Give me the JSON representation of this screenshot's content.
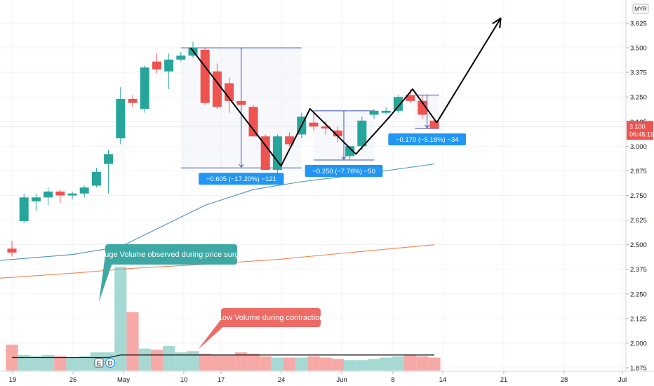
{
  "chart_data": {
    "type": "candlestick",
    "currency": "MYR",
    "price_axis": {
      "min": 1.875,
      "max": 3.625,
      "ticks": [
        "3.625",
        "3.500",
        "3.375",
        "3.250",
        "3.125",
        "3.000",
        "2.875",
        "2.750",
        "2.625",
        "2.500",
        "2.375",
        "2.250",
        "2.125",
        "2.000",
        "1.875"
      ]
    },
    "time_axis": {
      "labels": [
        "19",
        "26",
        "May",
        "10",
        "17",
        "24",
        "Jun",
        "8",
        "14",
        "21",
        "28",
        "Jul"
      ]
    },
    "candles": [
      {
        "o": 2.48,
        "h": 2.52,
        "l": 2.44,
        "c": 2.46
      },
      {
        "o": 2.62,
        "h": 2.76,
        "l": 2.61,
        "c": 2.74
      },
      {
        "o": 2.72,
        "h": 2.76,
        "l": 2.67,
        "c": 2.74
      },
      {
        "o": 2.74,
        "h": 2.79,
        "l": 2.7,
        "c": 2.77
      },
      {
        "o": 2.77,
        "h": 2.78,
        "l": 2.71,
        "c": 2.75
      },
      {
        "o": 2.75,
        "h": 2.77,
        "l": 2.73,
        "c": 2.76
      },
      {
        "o": 2.76,
        "h": 2.8,
        "l": 2.74,
        "c": 2.79
      },
      {
        "o": 2.8,
        "h": 2.89,
        "l": 2.79,
        "c": 2.87
      },
      {
        "o": 2.91,
        "h": 2.98,
        "l": 2.76,
        "c": 2.96
      },
      {
        "o": 3.04,
        "h": 3.3,
        "l": 3.01,
        "c": 3.24
      },
      {
        "o": 3.24,
        "h": 3.26,
        "l": 3.2,
        "c": 3.22
      },
      {
        "o": 3.19,
        "h": 3.41,
        "l": 3.17,
        "c": 3.4
      },
      {
        "o": 3.43,
        "h": 3.47,
        "l": 3.37,
        "c": 3.39
      },
      {
        "o": 3.38,
        "h": 3.47,
        "l": 3.29,
        "c": 3.44
      },
      {
        "o": 3.44,
        "h": 3.48,
        "l": 3.43,
        "c": 3.46
      },
      {
        "o": 3.46,
        "h": 3.53,
        "l": 3.45,
        "c": 3.5
      },
      {
        "o": 3.49,
        "h": 3.5,
        "l": 3.21,
        "c": 3.22
      },
      {
        "o": 3.38,
        "h": 3.42,
        "l": 3.19,
        "c": 3.2
      },
      {
        "o": 3.32,
        "h": 3.35,
        "l": 3.17,
        "c": 3.23
      },
      {
        "o": 3.23,
        "h": 3.26,
        "l": 3.2,
        "c": 3.21
      },
      {
        "o": 3.2,
        "h": 3.21,
        "l": 3.05,
        "c": 3.05
      },
      {
        "o": 3.05,
        "h": 3.06,
        "l": 2.88,
        "c": 2.88
      },
      {
        "o": 2.88,
        "h": 3.06,
        "l": 2.85,
        "c": 3.05
      },
      {
        "o": 3.05,
        "h": 3.07,
        "l": 3.0,
        "c": 3.01
      },
      {
        "o": 3.06,
        "h": 3.17,
        "l": 3.04,
        "c": 3.15
      },
      {
        "o": 3.12,
        "h": 3.18,
        "l": 3.08,
        "c": 3.1
      },
      {
        "o": 3.1,
        "h": 3.13,
        "l": 3.06,
        "c": 3.09
      },
      {
        "o": 3.08,
        "h": 3.1,
        "l": 3.02,
        "c": 3.05
      },
      {
        "o": 2.95,
        "h": 3.0,
        "l": 2.93,
        "c": 3.0
      },
      {
        "o": 3.0,
        "h": 3.15,
        "l": 2.98,
        "c": 3.13
      },
      {
        "o": 3.16,
        "h": 3.19,
        "l": 3.14,
        "c": 3.18
      },
      {
        "o": 3.17,
        "h": 3.2,
        "l": 3.16,
        "c": 3.18
      },
      {
        "o": 3.18,
        "h": 3.26,
        "l": 3.17,
        "c": 3.25
      },
      {
        "o": 3.26,
        "h": 3.29,
        "l": 3.22,
        "c": 3.23
      },
      {
        "o": 3.23,
        "h": 3.26,
        "l": 3.14,
        "c": 3.16
      },
      {
        "o": 3.13,
        "h": 3.14,
        "l": 3.09,
        "c": 3.09
      }
    ],
    "volume": [
      0.2,
      0.12,
      0.11,
      0.12,
      0.11,
      0.1,
      0.11,
      0.14,
      0.14,
      0.8,
      0.45,
      0.17,
      0.16,
      0.19,
      0.14,
      0.15,
      0.13,
      0.12,
      0.12,
      0.14,
      0.13,
      0.11,
      0.1,
      0.1,
      0.1,
      0.11,
      0.1,
      0.09,
      0.08,
      0.08,
      0.09,
      0.1,
      0.11,
      0.12,
      0.11,
      0.1
    ],
    "volume_ma": [
      {
        "i": 0,
        "v": 0.1
      },
      {
        "i": 8,
        "v": 0.1
      },
      {
        "i": 9,
        "v": 0.12
      },
      {
        "i": 20,
        "v": 0.12
      },
      {
        "i": 35,
        "v": 0.12
      }
    ],
    "ma_blue": [
      {
        "i": -1,
        "p": 2.42
      },
      {
        "i": 5,
        "p": 2.45
      },
      {
        "i": 9,
        "p": 2.49
      },
      {
        "i": 12,
        "p": 2.58
      },
      {
        "i": 16,
        "p": 2.7
      },
      {
        "i": 20,
        "p": 2.78
      },
      {
        "i": 24,
        "p": 2.82
      },
      {
        "i": 28,
        "p": 2.85
      },
      {
        "i": 35,
        "p": 2.91
      }
    ],
    "ma_orange": [
      {
        "i": -1,
        "p": 2.33
      },
      {
        "i": 5,
        "p": 2.355
      },
      {
        "i": 10,
        "p": 2.38
      },
      {
        "i": 16,
        "p": 2.4
      },
      {
        "i": 22,
        "p": 2.425
      },
      {
        "i": 28,
        "p": 2.46
      },
      {
        "i": 35,
        "p": 2.5
      }
    ],
    "zigzag": [
      {
        "i": 14.8,
        "p": 3.5
      },
      {
        "i": 22.3,
        "p": 2.9
      },
      {
        "i": 24.7,
        "p": 3.19
      },
      {
        "i": 28.5,
        "p": 2.96
      },
      {
        "i": 31.3,
        "p": 3.15
      },
      {
        "i": 33.2,
        "p": 3.29
      },
      {
        "i": 35.2,
        "p": 3.12
      }
    ],
    "projection_arrow": {
      "from": {
        "i": 35.2,
        "p": 3.12
      },
      "to": {
        "i": 40.5,
        "p": 3.65
      }
    },
    "measurements": [
      {
        "text": "−0.605 (−17.20%) −121",
        "from_i": 14,
        "to_i": 24,
        "top": 3.5,
        "bottom": 2.89
      },
      {
        "text": "−0.250 (−7.76%) −50",
        "from_i": 25,
        "to_i": 30,
        "top": 3.18,
        "bottom": 2.93
      },
      {
        "text": "−0.170 (−5.18%) −34",
        "from_i": 33.4,
        "to_i": 35.4,
        "top": 3.26,
        "bottom": 3.09
      }
    ],
    "current_price": {
      "value": "3.100",
      "countdown": "06:45:19"
    },
    "annotations": [
      {
        "text": "Huge Volume observed during price surge"
      },
      {
        "text": "Low Volume during contraction"
      }
    ],
    "event_markers": [
      "E",
      "D"
    ]
  },
  "colors": {
    "up": "#26a69a",
    "down": "#ef5350",
    "vol_up": "#a6d9d3",
    "vol_down": "#f6a9a7",
    "ma_blue": "#4c8fbd",
    "ma_orange": "#f08550",
    "measure": "#3f51b5",
    "badge": "#2196f3",
    "callout_teal": "#3da8a4",
    "callout_red": "#ee6b65"
  }
}
